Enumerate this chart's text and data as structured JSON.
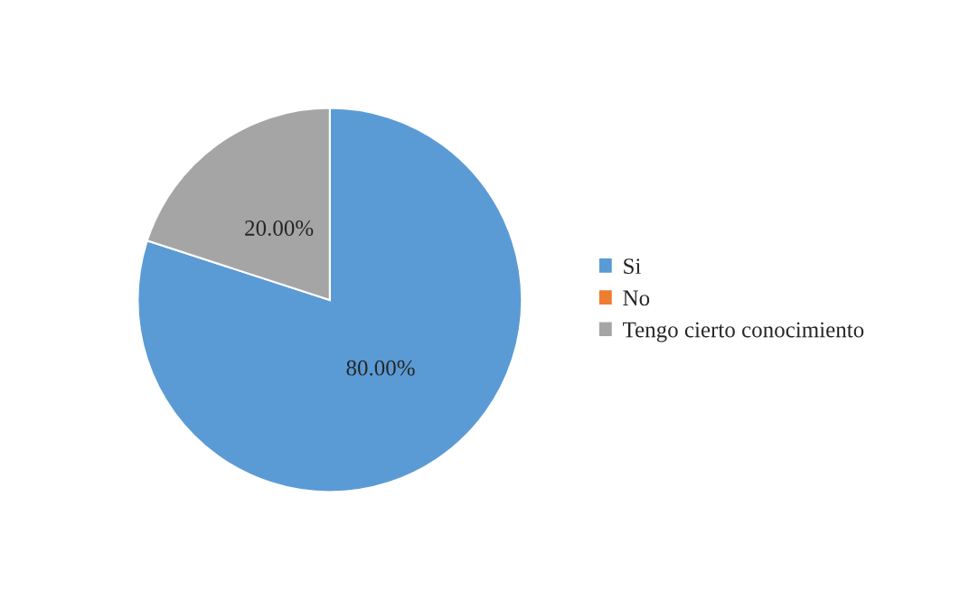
{
  "chart_data": {
    "type": "pie",
    "categories": [
      "Si",
      "No",
      "Tengo cierto conocimiento"
    ],
    "values": [
      80,
      0,
      20
    ],
    "colors": [
      "#5b9bd5",
      "#ed7d31",
      "#a5a5a5"
    ],
    "value_labels": [
      "80.00%",
      null,
      "20.00%"
    ],
    "legend": "right"
  }
}
